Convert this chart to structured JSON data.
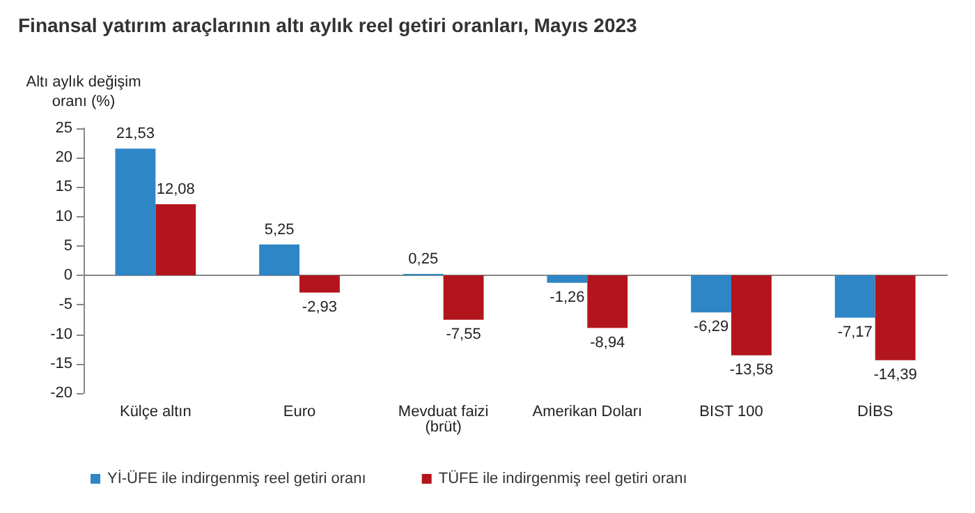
{
  "chart_data": {
    "type": "bar",
    "title": "Finansal yatırım araçlarının altı aylık reel getiri oranları, Mayıs 2023",
    "ylabel": "Altı aylık değişim\noranı (%)",
    "categories": [
      "Külçe altın",
      "Euro",
      "Mevduat faizi\n(brüt)",
      "Amerikan Doları",
      "BIST 100",
      "DİBS"
    ],
    "series": [
      {
        "name": "Yİ-ÜFE ile indirgenmiş reel getiri oranı",
        "color": "#2f86c6",
        "values": [
          21.53,
          5.25,
          0.25,
          -1.26,
          -6.29,
          -7.17
        ],
        "value_labels": [
          "21,53",
          "5,25",
          "0,25",
          "-1,26",
          "-6,29",
          "-7,17"
        ]
      },
      {
        "name": "TÜFE ile indirgenmiş reel getiri oranı",
        "color": "#b3151c",
        "values": [
          12.08,
          -2.93,
          -7.55,
          -8.94,
          -13.58,
          -14.39
        ],
        "value_labels": [
          "12,08",
          "-2,93",
          "-7,55",
          "-8,94",
          "-13,58",
          "-14,39"
        ]
      }
    ],
    "ylim": [
      -20,
      25
    ],
    "yticks": [
      -20,
      -15,
      -10,
      -5,
      0,
      5,
      10,
      15,
      20,
      25
    ],
    "legend": "bottom"
  }
}
